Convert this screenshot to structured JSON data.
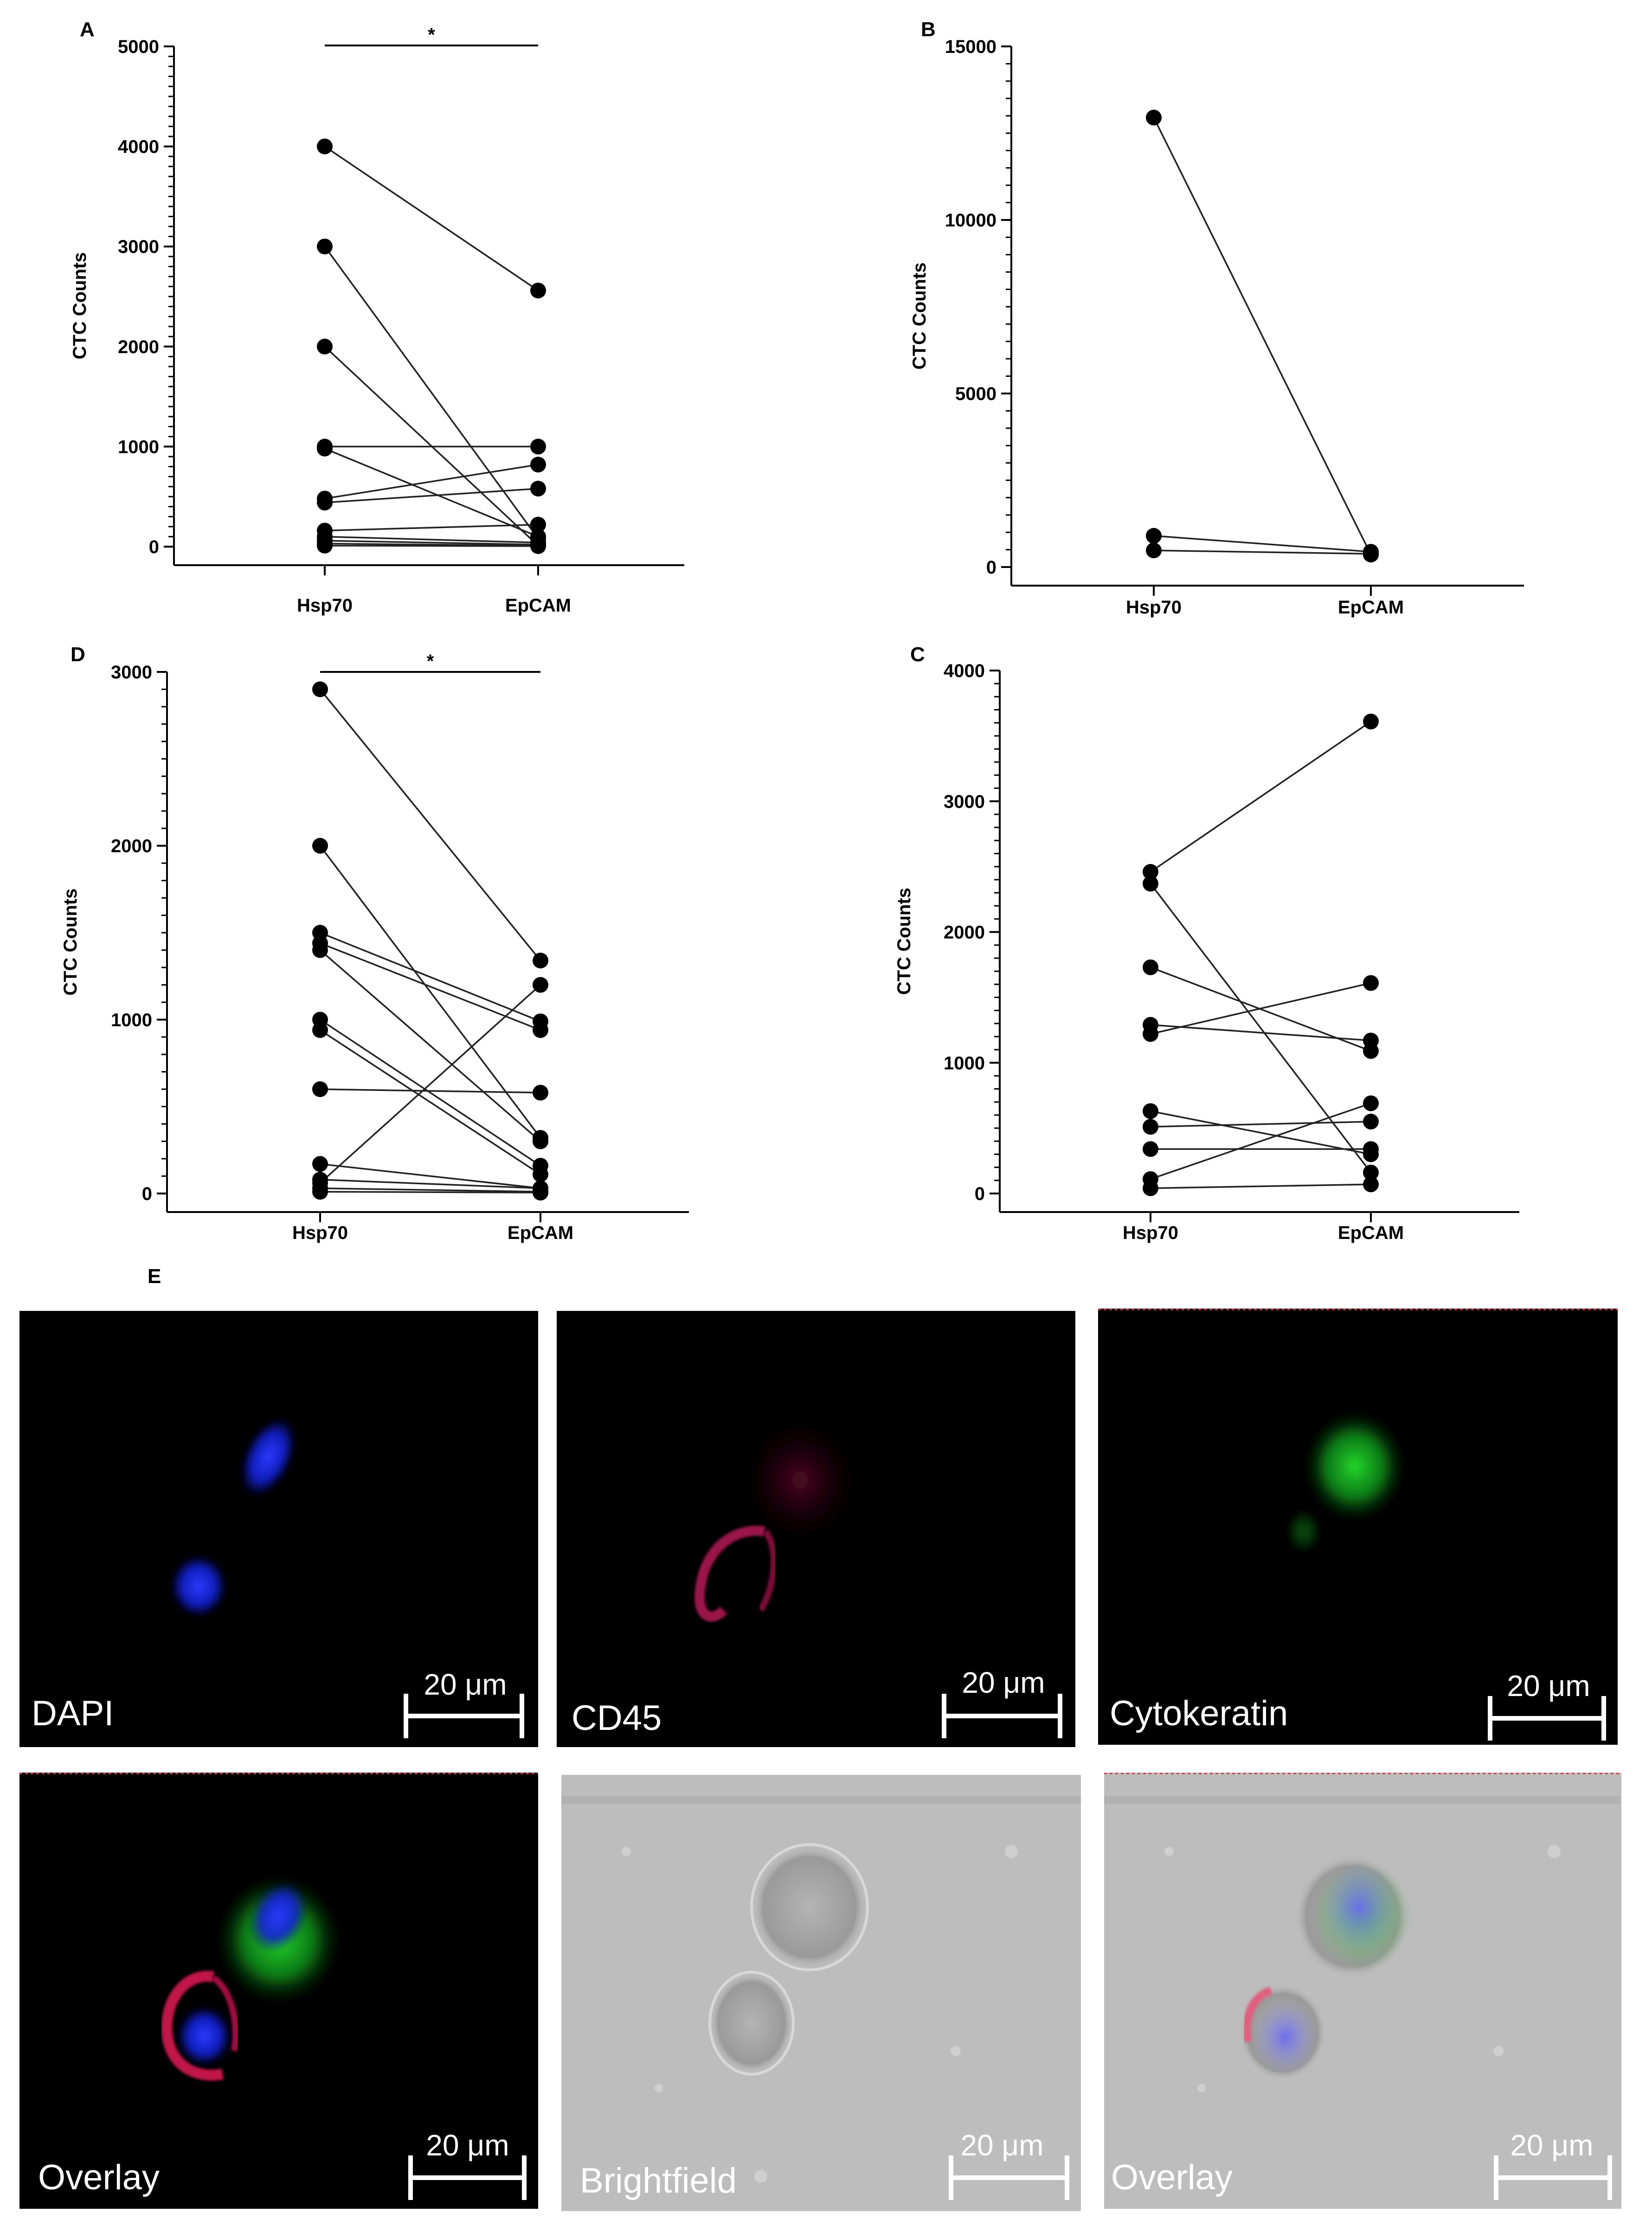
{
  "charts": [
    {
      "panel": "A",
      "chart_data": {
        "type": "scatter",
        "categories": [
          "Hsp70",
          "EpCAM"
        ],
        "ylabel": "CTC Counts",
        "ylim": [
          0,
          5000
        ],
        "yticks": [
          0,
          1000,
          2000,
          3000,
          4000,
          5000
        ],
        "significance": "*",
        "pairs": [
          [
            4000,
            2560
          ],
          [
            3000,
            80
          ],
          [
            2000,
            10
          ],
          [
            1000,
            1000
          ],
          [
            980,
            100
          ],
          [
            480,
            820
          ],
          [
            440,
            580
          ],
          [
            160,
            220
          ],
          [
            100,
            40
          ],
          [
            60,
            20
          ],
          [
            30,
            10
          ],
          [
            10,
            5
          ]
        ]
      }
    },
    {
      "panel": "B",
      "chart_data": {
        "type": "scatter",
        "categories": [
          "Hsp70",
          "EpCAM"
        ],
        "ylabel": "CTC Counts",
        "ylim": [
          0,
          15000
        ],
        "yticks": [
          0,
          5000,
          10000,
          15000
        ],
        "significance": "",
        "pairs": [
          [
            12950,
            360
          ],
          [
            900,
            440
          ],
          [
            480,
            380
          ]
        ]
      }
    },
    {
      "panel": "D",
      "chart_data": {
        "type": "scatter",
        "categories": [
          "Hsp70",
          "EpCAM"
        ],
        "ylabel": "CTC Counts",
        "ylim": [
          0,
          3000
        ],
        "yticks": [
          0,
          1000,
          2000,
          3000
        ],
        "significance": "*",
        "pairs": [
          [
            2900,
            1340
          ],
          [
            2000,
            320
          ],
          [
            1500,
            990
          ],
          [
            1440,
            940
          ],
          [
            1400,
            300
          ],
          [
            1000,
            160
          ],
          [
            940,
            110
          ],
          [
            600,
            580
          ],
          [
            170,
            30
          ],
          [
            80,
            30
          ],
          [
            60,
            1200
          ],
          [
            30,
            10
          ],
          [
            10,
            5
          ]
        ]
      }
    },
    {
      "panel": "C",
      "chart_data": {
        "type": "scatter",
        "categories": [
          "Hsp70",
          "EpCAM"
        ],
        "ylabel": "CTC Counts",
        "ylim": [
          0,
          4000
        ],
        "yticks": [
          0,
          1000,
          2000,
          3000,
          4000
        ],
        "significance": "",
        "pairs": [
          [
            2460,
            3610
          ],
          [
            2370,
            160
          ],
          [
            1730,
            1090
          ],
          [
            1290,
            1170
          ],
          [
            1220,
            1610
          ],
          [
            630,
            300
          ],
          [
            510,
            550
          ],
          [
            340,
            340
          ],
          [
            110,
            690
          ],
          [
            40,
            70
          ]
        ]
      }
    }
  ],
  "panel_e": {
    "label": "E",
    "images": [
      {
        "label": "DAPI",
        "scale": "20 μm"
      },
      {
        "label": "CD45",
        "scale": "20 μm"
      },
      {
        "label": "Cytokeratin",
        "scale": "20 μm"
      },
      {
        "label": "Overlay",
        "scale": "20 μm"
      },
      {
        "label": "Brightfield",
        "scale": "20 μm"
      },
      {
        "label": "Overlay",
        "scale": "20 μm"
      }
    ]
  }
}
